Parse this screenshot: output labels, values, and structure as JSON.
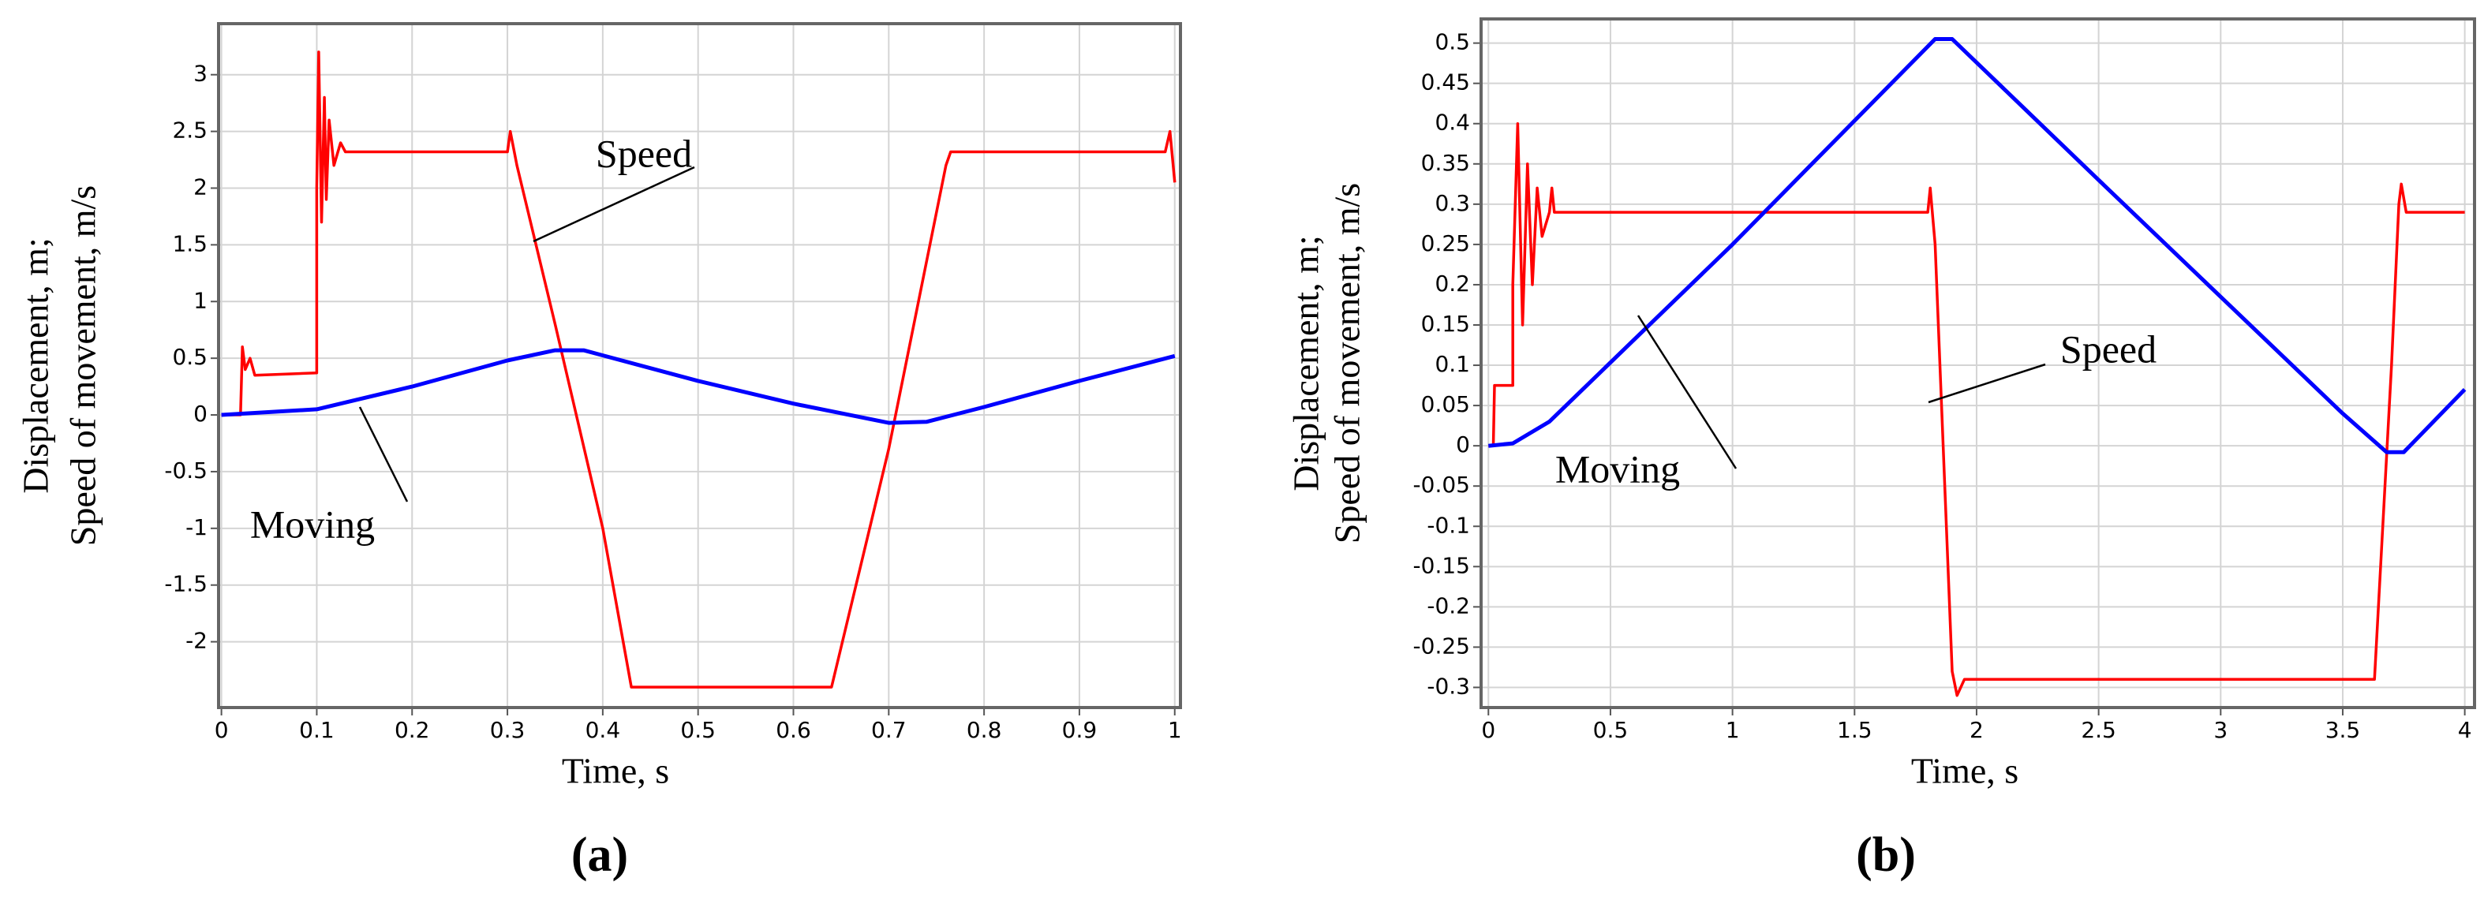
{
  "chart_data": [
    {
      "type": "line",
      "panel_label": "(a)",
      "x_label": "Time, s",
      "y_label": [
        "Displacement, m;",
        "Speed of movement, m/s"
      ],
      "xlim": [
        -0.003,
        1.006
      ],
      "ylim": [
        -2.58,
        3.45
      ],
      "xticks": [
        0,
        0.1,
        0.2,
        0.3,
        0.4,
        0.5,
        0.6,
        0.7,
        0.8,
        0.9,
        1
      ],
      "yticks": [
        -2,
        -1.5,
        -1,
        -0.5,
        0,
        0.5,
        1,
        1.5,
        2,
        2.5,
        3
      ],
      "grid": true,
      "series": [
        {
          "name": "Speed",
          "color": "#ff0000",
          "x": [
            0,
            0.02,
            0.022,
            0.025,
            0.03,
            0.035,
            0.1,
            0.1,
            0.102,
            0.105,
            0.108,
            0.11,
            0.113,
            0.118,
            0.125,
            0.13,
            0.3,
            0.303,
            0.31,
            0.35,
            0.4,
            0.43,
            0.64,
            0.7,
            0.76,
            0.765,
            0.99,
            0.995,
            1.0
          ],
          "values": [
            0,
            0,
            0.6,
            0.4,
            0.5,
            0.35,
            0.37,
            2.0,
            3.2,
            1.7,
            2.8,
            1.9,
            2.6,
            2.2,
            2.4,
            2.32,
            2.32,
            2.5,
            2.2,
            0.8,
            -1.0,
            -2.4,
            -2.4,
            -0.3,
            2.2,
            2.32,
            2.32,
            2.5,
            2.05
          ]
        },
        {
          "name": "Moving",
          "color": "#0000ff",
          "x": [
            0,
            0.1,
            0.2,
            0.3,
            0.35,
            0.38,
            0.5,
            0.6,
            0.7,
            0.74,
            0.8,
            0.9,
            1.0
          ],
          "values": [
            0,
            0.05,
            0.25,
            0.48,
            0.57,
            0.57,
            0.3,
            0.1,
            -0.07,
            -0.06,
            0.07,
            0.3,
            0.52
          ]
        }
      ]
    },
    {
      "type": "line",
      "panel_label": "(b)",
      "x_label": "Time, s",
      "y_label": [
        "Displacement, m;",
        "Speed of movement, m/s"
      ],
      "xlim": [
        -0.03,
        4.04
      ],
      "ylim": [
        -0.325,
        0.53
      ],
      "xticks": [
        0,
        0.5,
        1,
        1.5,
        2,
        2.5,
        3,
        3.5,
        4
      ],
      "yticks": [
        -0.3,
        -0.25,
        -0.2,
        -0.15,
        -0.1,
        -0.05,
        0,
        0.05,
        0.1,
        0.15,
        0.2,
        0.25,
        0.3,
        0.35,
        0.4,
        0.45,
        0.5
      ],
      "grid": true,
      "series": [
        {
          "name": "Speed",
          "color": "#ff0000",
          "x": [
            0,
            0.02,
            0.025,
            0.1,
            0.1,
            0.12,
            0.14,
            0.16,
            0.18,
            0.2,
            0.22,
            0.25,
            0.26,
            0.27,
            1.8,
            1.81,
            1.83,
            1.9,
            1.92,
            1.95,
            3.63,
            3.7,
            3.73,
            3.74,
            3.76,
            4.0
          ],
          "values": [
            0,
            0,
            0.075,
            0.075,
            0.2,
            0.4,
            0.15,
            0.35,
            0.2,
            0.32,
            0.26,
            0.29,
            0.32,
            0.29,
            0.29,
            0.32,
            0.25,
            -0.28,
            -0.31,
            -0.29,
            -0.29,
            0.1,
            0.3,
            0.325,
            0.29,
            0.29
          ]
        },
        {
          "name": "Moving",
          "color": "#0000ff",
          "x": [
            0,
            0.1,
            0.25,
            1.0,
            1.83,
            1.9,
            2.5,
            3.0,
            3.5,
            3.68,
            3.75,
            4.0
          ],
          "values": [
            0,
            0.003,
            0.03,
            0.25,
            0.505,
            0.505,
            0.33,
            0.185,
            0.04,
            -0.008,
            -0.008,
            0.07
          ]
        }
      ]
    }
  ]
}
